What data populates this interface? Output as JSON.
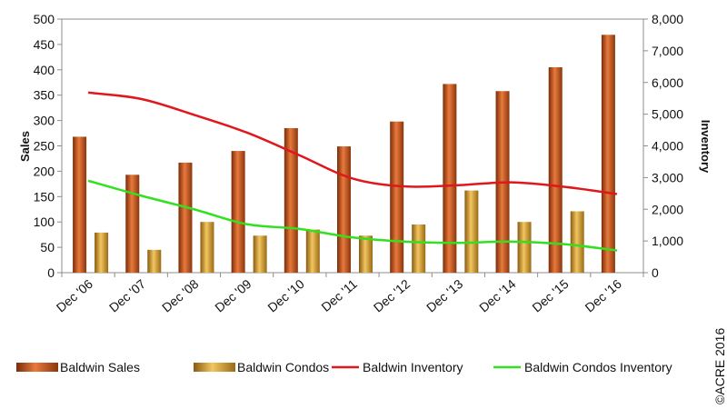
{
  "chart_data": {
    "type": "bar",
    "categories": [
      "Dec '06",
      "Dec '07",
      "Dec '08",
      "Dec '09",
      "Dec '10",
      "Dec '11",
      "Dec '12",
      "Dec '13",
      "Dec '14",
      "Dec '15",
      "Dec '16"
    ],
    "title": "",
    "ylabel": "Sales",
    "y2label": "Inventory",
    "ylim": [
      0,
      500
    ],
    "y2lim": [
      0,
      8000
    ],
    "yticks": [
      "0",
      "50",
      "100",
      "150",
      "200",
      "250",
      "300",
      "350",
      "400",
      "450",
      "500"
    ],
    "y2ticks": [
      "0",
      "1,000",
      "2,000",
      "3,000",
      "4,000",
      "5,000",
      "6,000",
      "7,000",
      "8,000"
    ],
    "grid": false,
    "legend_position": "bottom",
    "series": [
      {
        "name": "Baldwin Sales",
        "kind": "bar",
        "axis": "left",
        "color": "#c0531b",
        "values": [
          268,
          193,
          217,
          240,
          285,
          249,
          298,
          372,
          358,
          405,
          469
        ]
      },
      {
        "name": "Baldwin Condos",
        "kind": "bar",
        "axis": "left",
        "color": "#d9a02a",
        "values": [
          79,
          45,
          100,
          73,
          85,
          73,
          95,
          162,
          100,
          121,
          0
        ]
      },
      {
        "name": "Baldwin Inventory",
        "kind": "line",
        "axis": "right",
        "color": "#e0171c",
        "values": [
          5680,
          5480,
          4980,
          4420,
          3700,
          2970,
          2720,
          2760,
          2850,
          2710,
          2480
        ]
      },
      {
        "name": "Baldwin Condos Inventory",
        "kind": "line",
        "axis": "right",
        "color": "#33e01f",
        "values": [
          2900,
          2430,
          2000,
          1530,
          1380,
          1110,
          980,
          940,
          980,
          900,
          700
        ]
      }
    ]
  },
  "copyright": "©ACRE 2016"
}
